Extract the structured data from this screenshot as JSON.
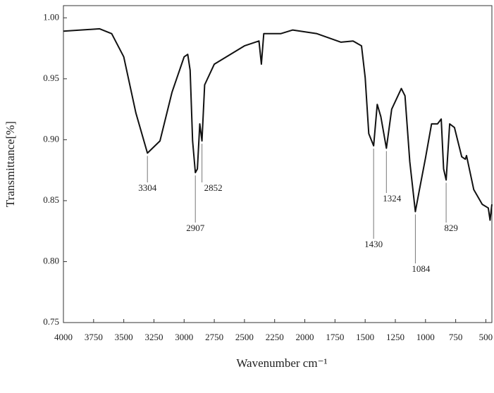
{
  "chart_data": {
    "type": "line",
    "x_label": "Wavenumber cm⁻¹",
    "y_label": "Transmittance[%]",
    "xlim": [
      4000,
      450
    ],
    "ylim": [
      0.75,
      1.01
    ],
    "xticks": [
      4000,
      3750,
      3500,
      3250,
      3000,
      2750,
      2500,
      2250,
      2000,
      1750,
      1500,
      1250,
      1000,
      750,
      500
    ],
    "yticks": [
      {
        "value": 1.0,
        "label": "1.00"
      },
      0.95,
      {
        "value": 0.9,
        "label": "0.90"
      },
      0.85,
      {
        "value": 0.8,
        "label": "0.80"
      },
      0.75
    ],
    "series": [
      {
        "name": "spectrum",
        "color": "#111111",
        "x": [
          4000,
          3700,
          3600,
          3500,
          3400,
          3304,
          3200,
          3100,
          3000,
          2970,
          2950,
          2930,
          2907,
          2890,
          2870,
          2852,
          2830,
          2750,
          2500,
          2380,
          2360,
          2340,
          2200,
          2100,
          1900,
          1700,
          1600,
          1530,
          1500,
          1470,
          1430,
          1400,
          1370,
          1324,
          1280,
          1200,
          1170,
          1130,
          1084,
          1050,
          1000,
          950,
          900,
          870,
          850,
          829,
          800,
          760,
          700,
          670,
          660,
          600,
          530,
          480,
          465,
          450
        ],
        "values": [
          0.989,
          0.991,
          0.987,
          0.968,
          0.922,
          0.889,
          0.899,
          0.939,
          0.968,
          0.97,
          0.957,
          0.899,
          0.873,
          0.876,
          0.913,
          0.899,
          0.945,
          0.962,
          0.977,
          0.981,
          0.962,
          0.987,
          0.987,
          0.99,
          0.987,
          0.98,
          0.981,
          0.977,
          0.951,
          0.905,
          0.895,
          0.929,
          0.919,
          0.893,
          0.925,
          0.942,
          0.936,
          0.882,
          0.841,
          0.859,
          0.885,
          0.913,
          0.913,
          0.917,
          0.876,
          0.867,
          0.913,
          0.91,
          0.886,
          0.884,
          0.887,
          0.859,
          0.847,
          0.844,
          0.834,
          0.847
        ]
      }
    ],
    "annotations": [
      {
        "label": "3304",
        "x": 3304
      },
      {
        "label": "2907",
        "x": 2907
      },
      {
        "label": "2852",
        "x": 2852
      },
      {
        "label": "1430",
        "x": 1430
      },
      {
        "label": "1324",
        "x": 1324
      },
      {
        "label": "1084",
        "x": 1084
      },
      {
        "label": "829",
        "x": 829
      }
    ]
  }
}
